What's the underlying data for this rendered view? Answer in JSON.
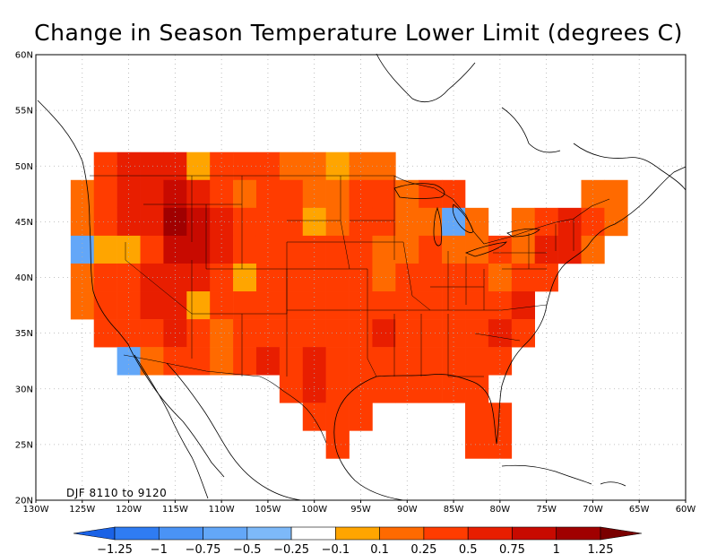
{
  "title": "Change in Season Temperature Lower Limit (degrees C)",
  "annotation": "DJF 8110 to 9120",
  "colors": {
    "background": "#ffffff",
    "frame": "#000000",
    "grid": "#b0b0b0",
    "coast": "#000000"
  },
  "chart_data": {
    "type": "heatmap",
    "title": "Change in Season Temperature Lower Limit (degrees C)",
    "xlabel": "",
    "ylabel": "",
    "lon_range": [
      -130,
      -60
    ],
    "lat_range": [
      20,
      60
    ],
    "x_ticks": [
      "130W",
      "125W",
      "120W",
      "115W",
      "110W",
      "105W",
      "100W",
      "95W",
      "90W",
      "85W",
      "80W",
      "75W",
      "70W",
      "65W",
      "60W"
    ],
    "y_ticks": [
      "20N",
      "25N",
      "30N",
      "35N",
      "40N",
      "45N",
      "50N",
      "55N",
      "60N"
    ],
    "grid": true,
    "colorbar": {
      "labels": [
        "-1.25",
        "-1",
        "-0.75",
        "-0.5",
        "-0.25",
        "-0.1",
        "0.1",
        "0.25",
        "0.5",
        "0.75",
        "1",
        "1.25"
      ],
      "colors": [
        "#1a62e6",
        "#2f7cf2",
        "#4a93f5",
        "#63a7f8",
        "#7db9f9",
        "#ffffff",
        "#ffa500",
        "#ff6a00",
        "#ff3c00",
        "#e81e00",
        "#c80a00",
        "#a00000",
        "#7a0000"
      ]
    },
    "cell_size_deg": 2.5,
    "cells": [
      {
        "lon": -125.0,
        "lat": 47.5,
        "v": 0.2
      },
      {
        "lon": -125.0,
        "lat": 45.0,
        "v": 0.2
      },
      {
        "lon": -125.0,
        "lat": 42.5,
        "v": -0.6
      },
      {
        "lon": -125.0,
        "lat": 40.0,
        "v": 0.2
      },
      {
        "lon": -125.0,
        "lat": 37.5,
        "v": 0.2
      },
      {
        "lon": -122.5,
        "lat": 50.0,
        "v": 0.3
      },
      {
        "lon": -122.5,
        "lat": 47.5,
        "v": 0.3
      },
      {
        "lon": -122.5,
        "lat": 45.0,
        "v": 0.3
      },
      {
        "lon": -122.5,
        "lat": 42.5,
        "v": 0.0
      },
      {
        "lon": -122.5,
        "lat": 40.0,
        "v": 0.3
      },
      {
        "lon": -122.5,
        "lat": 37.5,
        "v": 0.3
      },
      {
        "lon": -122.5,
        "lat": 35.0,
        "v": 0.3
      },
      {
        "lon": -120.0,
        "lat": 50.0,
        "v": 0.6
      },
      {
        "lon": -120.0,
        "lat": 47.5,
        "v": 0.6
      },
      {
        "lon": -120.0,
        "lat": 45.0,
        "v": 0.6
      },
      {
        "lon": -120.0,
        "lat": 42.5,
        "v": 0.0
      },
      {
        "lon": -120.0,
        "lat": 40.0,
        "v": 0.3
      },
      {
        "lon": -120.0,
        "lat": 37.5,
        "v": 0.3
      },
      {
        "lon": -120.0,
        "lat": 35.0,
        "v": 0.3
      },
      {
        "lon": -120.0,
        "lat": 32.5,
        "v": -0.6
      },
      {
        "lon": -117.5,
        "lat": 50.0,
        "v": 0.6
      },
      {
        "lon": -117.5,
        "lat": 47.5,
        "v": 0.6
      },
      {
        "lon": -117.5,
        "lat": 45.0,
        "v": 0.6
      },
      {
        "lon": -117.5,
        "lat": 42.5,
        "v": 0.3
      },
      {
        "lon": -117.5,
        "lat": 40.0,
        "v": 0.6
      },
      {
        "lon": -117.5,
        "lat": 37.5,
        "v": 0.6
      },
      {
        "lon": -117.5,
        "lat": 35.0,
        "v": 0.3
      },
      {
        "lon": -117.5,
        "lat": 32.5,
        "v": 0.2
      },
      {
        "lon": -115.0,
        "lat": 50.0,
        "v": 0.6
      },
      {
        "lon": -115.0,
        "lat": 47.5,
        "v": 0.9
      },
      {
        "lon": -115.0,
        "lat": 45.0,
        "v": 1.1
      },
      {
        "lon": -115.0,
        "lat": 42.5,
        "v": 0.9
      },
      {
        "lon": -115.0,
        "lat": 40.0,
        "v": 0.6
      },
      {
        "lon": -115.0,
        "lat": 37.5,
        "v": 0.6
      },
      {
        "lon": -115.0,
        "lat": 35.0,
        "v": 0.6
      },
      {
        "lon": -115.0,
        "lat": 32.5,
        "v": 0.3
      },
      {
        "lon": -112.5,
        "lat": 50.0,
        "v": 0.0
      },
      {
        "lon": -112.5,
        "lat": 47.5,
        "v": 0.6
      },
      {
        "lon": -112.5,
        "lat": 45.0,
        "v": 0.9
      },
      {
        "lon": -112.5,
        "lat": 42.5,
        "v": 0.9
      },
      {
        "lon": -112.5,
        "lat": 40.0,
        "v": 0.6
      },
      {
        "lon": -112.5,
        "lat": 37.5,
        "v": 0.0
      },
      {
        "lon": -112.5,
        "lat": 35.0,
        "v": 0.3
      },
      {
        "lon": -112.5,
        "lat": 32.5,
        "v": 0.3
      },
      {
        "lon": -110.0,
        "lat": 50.0,
        "v": 0.3
      },
      {
        "lon": -110.0,
        "lat": 47.5,
        "v": 0.3
      },
      {
        "lon": -110.0,
        "lat": 45.0,
        "v": 0.6
      },
      {
        "lon": -110.0,
        "lat": 42.5,
        "v": 0.6
      },
      {
        "lon": -110.0,
        "lat": 40.0,
        "v": 0.3
      },
      {
        "lon": -110.0,
        "lat": 37.5,
        "v": 0.3
      },
      {
        "lon": -110.0,
        "lat": 35.0,
        "v": 0.2
      },
      {
        "lon": -110.0,
        "lat": 32.5,
        "v": 0.2
      },
      {
        "lon": -107.5,
        "lat": 50.0,
        "v": 0.3
      },
      {
        "lon": -107.5,
        "lat": 47.5,
        "v": 0.2
      },
      {
        "lon": -107.5,
        "lat": 45.0,
        "v": 0.3
      },
      {
        "lon": -107.5,
        "lat": 42.5,
        "v": 0.3
      },
      {
        "lon": -107.5,
        "lat": 40.0,
        "v": 0.0
      },
      {
        "lon": -107.5,
        "lat": 37.5,
        "v": 0.3
      },
      {
        "lon": -107.5,
        "lat": 35.0,
        "v": 0.3
      },
      {
        "lon": -107.5,
        "lat": 32.5,
        "v": 0.3
      },
      {
        "lon": -105.0,
        "lat": 50.0,
        "v": 0.3
      },
      {
        "lon": -105.0,
        "lat": 47.5,
        "v": 0.3
      },
      {
        "lon": -105.0,
        "lat": 45.0,
        "v": 0.3
      },
      {
        "lon": -105.0,
        "lat": 42.5,
        "v": 0.3
      },
      {
        "lon": -105.0,
        "lat": 40.0,
        "v": 0.3
      },
      {
        "lon": -105.0,
        "lat": 37.5,
        "v": 0.3
      },
      {
        "lon": -105.0,
        "lat": 35.0,
        "v": 0.3
      },
      {
        "lon": -105.0,
        "lat": 32.5,
        "v": 0.6
      },
      {
        "lon": -102.5,
        "lat": 50.0,
        "v": 0.2
      },
      {
        "lon": -102.5,
        "lat": 47.5,
        "v": 0.3
      },
      {
        "lon": -102.5,
        "lat": 45.0,
        "v": 0.3
      },
      {
        "lon": -102.5,
        "lat": 42.5,
        "v": 0.3
      },
      {
        "lon": -102.5,
        "lat": 40.0,
        "v": 0.3
      },
      {
        "lon": -102.5,
        "lat": 37.5,
        "v": 0.3
      },
      {
        "lon": -102.5,
        "lat": 35.0,
        "v": 0.3
      },
      {
        "lon": -102.5,
        "lat": 32.5,
        "v": 0.3
      },
      {
        "lon": -102.5,
        "lat": 30.0,
        "v": 0.3
      },
      {
        "lon": -100.0,
        "lat": 50.0,
        "v": 0.2
      },
      {
        "lon": -100.0,
        "lat": 47.5,
        "v": 0.2
      },
      {
        "lon": -100.0,
        "lat": 45.0,
        "v": 0.0
      },
      {
        "lon": -100.0,
        "lat": 42.5,
        "v": 0.3
      },
      {
        "lon": -100.0,
        "lat": 40.0,
        "v": 0.3
      },
      {
        "lon": -100.0,
        "lat": 37.5,
        "v": 0.3
      },
      {
        "lon": -100.0,
        "lat": 35.0,
        "v": 0.3
      },
      {
        "lon": -100.0,
        "lat": 32.5,
        "v": 0.6
      },
      {
        "lon": -100.0,
        "lat": 30.0,
        "v": 0.6
      },
      {
        "lon": -100.0,
        "lat": 27.5,
        "v": 0.3
      },
      {
        "lon": -97.5,
        "lat": 50.0,
        "v": 0.0
      },
      {
        "lon": -97.5,
        "lat": 47.5,
        "v": 0.2
      },
      {
        "lon": -97.5,
        "lat": 45.0,
        "v": 0.2
      },
      {
        "lon": -97.5,
        "lat": 42.5,
        "v": 0.3
      },
      {
        "lon": -97.5,
        "lat": 40.0,
        "v": 0.3
      },
      {
        "lon": -97.5,
        "lat": 37.5,
        "v": 0.3
      },
      {
        "lon": -97.5,
        "lat": 35.0,
        "v": 0.3
      },
      {
        "lon": -97.5,
        "lat": 32.5,
        "v": 0.3
      },
      {
        "lon": -97.5,
        "lat": 30.0,
        "v": 0.3
      },
      {
        "lon": -97.5,
        "lat": 27.5,
        "v": 0.3
      },
      {
        "lon": -97.5,
        "lat": 25.0,
        "v": 0.3
      },
      {
        "lon": -95.0,
        "lat": 50.0,
        "v": 0.2
      },
      {
        "lon": -95.0,
        "lat": 47.5,
        "v": 0.3
      },
      {
        "lon": -95.0,
        "lat": 45.0,
        "v": 0.3
      },
      {
        "lon": -95.0,
        "lat": 42.5,
        "v": 0.3
      },
      {
        "lon": -95.0,
        "lat": 40.0,
        "v": 0.3
      },
      {
        "lon": -95.0,
        "lat": 37.5,
        "v": 0.3
      },
      {
        "lon": -95.0,
        "lat": 35.0,
        "v": 0.3
      },
      {
        "lon": -95.0,
        "lat": 32.5,
        "v": 0.3
      },
      {
        "lon": -95.0,
        "lat": 30.0,
        "v": 0.3
      },
      {
        "lon": -95.0,
        "lat": 27.5,
        "v": 0.3
      },
      {
        "lon": -92.5,
        "lat": 50.0,
        "v": 0.2
      },
      {
        "lon": -92.5,
        "lat": 47.5,
        "v": 0.3
      },
      {
        "lon": -92.5,
        "lat": 45.0,
        "v": 0.3
      },
      {
        "lon": -92.5,
        "lat": 42.5,
        "v": 0.2
      },
      {
        "lon": -92.5,
        "lat": 40.0,
        "v": 0.2
      },
      {
        "lon": -92.5,
        "lat": 37.5,
        "v": 0.3
      },
      {
        "lon": -92.5,
        "lat": 35.0,
        "v": 0.6
      },
      {
        "lon": -92.5,
        "lat": 32.5,
        "v": 0.3
      },
      {
        "lon": -92.5,
        "lat": 30.0,
        "v": 0.3
      },
      {
        "lon": -90.0,
        "lat": 47.5,
        "v": 0.2
      },
      {
        "lon": -90.0,
        "lat": 45.0,
        "v": 0.2
      },
      {
        "lon": -90.0,
        "lat": 42.5,
        "v": 0.2
      },
      {
        "lon": -90.0,
        "lat": 40.0,
        "v": 0.3
      },
      {
        "lon": -90.0,
        "lat": 37.5,
        "v": 0.3
      },
      {
        "lon": -90.0,
        "lat": 35.0,
        "v": 0.3
      },
      {
        "lon": -90.0,
        "lat": 32.5,
        "v": 0.3
      },
      {
        "lon": -90.0,
        "lat": 30.0,
        "v": 0.3
      },
      {
        "lon": -87.5,
        "lat": 47.5,
        "v": 0.3
      },
      {
        "lon": -87.5,
        "lat": 45.0,
        "v": 0.2
      },
      {
        "lon": -87.5,
        "lat": 42.5,
        "v": 0.3
      },
      {
        "lon": -87.5,
        "lat": 40.0,
        "v": 0.3
      },
      {
        "lon": -87.5,
        "lat": 37.5,
        "v": 0.3
      },
      {
        "lon": -87.5,
        "lat": 35.0,
        "v": 0.3
      },
      {
        "lon": -87.5,
        "lat": 32.5,
        "v": 0.3
      },
      {
        "lon": -87.5,
        "lat": 30.0,
        "v": 0.3
      },
      {
        "lon": -85.0,
        "lat": 47.5,
        "v": 0.3
      },
      {
        "lon": -85.0,
        "lat": 45.0,
        "v": -0.6
      },
      {
        "lon": -85.0,
        "lat": 42.5,
        "v": 0.2
      },
      {
        "lon": -85.0,
        "lat": 40.0,
        "v": 0.3
      },
      {
        "lon": -85.0,
        "lat": 37.5,
        "v": 0.3
      },
      {
        "lon": -85.0,
        "lat": 35.0,
        "v": 0.3
      },
      {
        "lon": -85.0,
        "lat": 32.5,
        "v": 0.3
      },
      {
        "lon": -85.0,
        "lat": 30.0,
        "v": 0.3
      },
      {
        "lon": -82.5,
        "lat": 45.0,
        "v": 0.2
      },
      {
        "lon": -82.5,
        "lat": 42.5,
        "v": 0.2
      },
      {
        "lon": -82.5,
        "lat": 40.0,
        "v": 0.3
      },
      {
        "lon": -82.5,
        "lat": 37.5,
        "v": 0.3
      },
      {
        "lon": -82.5,
        "lat": 35.0,
        "v": 0.3
      },
      {
        "lon": -82.5,
        "lat": 32.5,
        "v": 0.3
      },
      {
        "lon": -82.5,
        "lat": 30.0,
        "v": 0.3
      },
      {
        "lon": -82.5,
        "lat": 27.5,
        "v": 0.3
      },
      {
        "lon": -82.5,
        "lat": 25.0,
        "v": 0.3
      },
      {
        "lon": -80.0,
        "lat": 42.5,
        "v": 0.3
      },
      {
        "lon": -80.0,
        "lat": 40.0,
        "v": 0.2
      },
      {
        "lon": -80.0,
        "lat": 37.5,
        "v": 0.3
      },
      {
        "lon": -80.0,
        "lat": 35.0,
        "v": 0.6
      },
      {
        "lon": -80.0,
        "lat": 32.5,
        "v": 0.3
      },
      {
        "lon": -80.0,
        "lat": 27.5,
        "v": 0.3
      },
      {
        "lon": -80.0,
        "lat": 25.0,
        "v": 0.3
      },
      {
        "lon": -77.5,
        "lat": 45.0,
        "v": 0.2
      },
      {
        "lon": -77.5,
        "lat": 42.5,
        "v": 0.2
      },
      {
        "lon": -77.5,
        "lat": 40.0,
        "v": 0.3
      },
      {
        "lon": -77.5,
        "lat": 37.5,
        "v": 0.6
      },
      {
        "lon": -77.5,
        "lat": 35.0,
        "v": 0.3
      },
      {
        "lon": -75.0,
        "lat": 45.0,
        "v": 0.3
      },
      {
        "lon": -75.0,
        "lat": 42.5,
        "v": 0.6
      },
      {
        "lon": -75.0,
        "lat": 40.0,
        "v": 0.3
      },
      {
        "lon": -72.5,
        "lat": 45.0,
        "v": 0.6
      },
      {
        "lon": -72.5,
        "lat": 42.5,
        "v": 0.6
      },
      {
        "lon": -70.0,
        "lat": 47.5,
        "v": 0.2
      },
      {
        "lon": -70.0,
        "lat": 45.0,
        "v": 0.3
      },
      {
        "lon": -70.0,
        "lat": 42.5,
        "v": 0.2
      },
      {
        "lon": -67.5,
        "lat": 47.5,
        "v": 0.2
      },
      {
        "lon": -67.5,
        "lat": 45.0,
        "v": 0.2
      }
    ]
  }
}
